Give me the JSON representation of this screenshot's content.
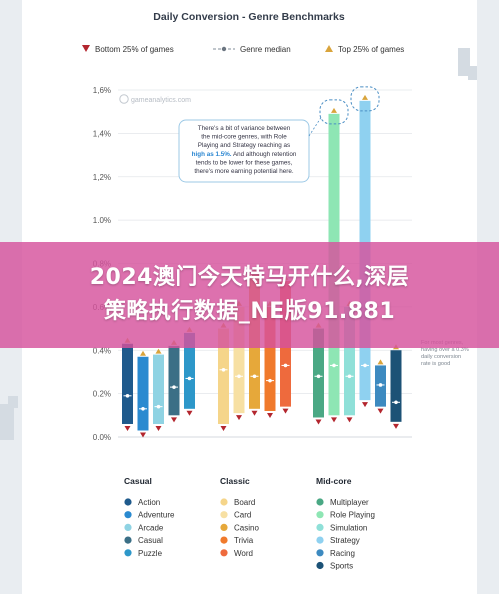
{
  "chart_data": {
    "type": "bar",
    "title": "Daily Conversion - Genre Benchmarks",
    "watermark": "gameanalytics.com",
    "ylim": [
      0,
      1.6
    ],
    "yticks": [
      "0.0%",
      "0.2%",
      "0.4%",
      "0.6%",
      "0.8%",
      "1.0%",
      "1,2%",
      "1,4%",
      "1,6%"
    ],
    "ytick_values": [
      0,
      0.2,
      0.4,
      0.6,
      0.8,
      1.0,
      1.2,
      1.4,
      1.6
    ],
    "legend": {
      "bottom": "Bottom 25% of games",
      "median": "Genre median",
      "top": "Top 25% of games"
    },
    "groups": [
      {
        "name": "Casual",
        "genres": [
          {
            "name": "Action",
            "color": "#1f5a8c",
            "bottom": 0.06,
            "median": 0.19,
            "top": 0.43
          },
          {
            "name": "Adventure",
            "color": "#2a8ad0",
            "bottom": 0.03,
            "median": 0.13,
            "top": 0.37
          },
          {
            "name": "Arcade",
            "color": "#8fd3e3",
            "bottom": 0.06,
            "median": 0.14,
            "top": 0.38
          },
          {
            "name": "Casual",
            "color": "#3b6f86",
            "bottom": 0.1,
            "median": 0.23,
            "top": 0.42
          },
          {
            "name": "Puzzle",
            "color": "#2d97c9",
            "bottom": 0.13,
            "median": 0.27,
            "top": 0.48
          }
        ]
      },
      {
        "name": "Classic",
        "genres": [
          {
            "name": "Board",
            "color": "#f5d58a",
            "bottom": 0.06,
            "median": 0.31,
            "top": 0.5
          },
          {
            "name": "Card",
            "color": "#f7e0a3",
            "bottom": 0.11,
            "median": 0.28,
            "top": 0.6
          },
          {
            "name": "Casino",
            "color": "#e6a83a",
            "bottom": 0.13,
            "median": 0.28,
            "top": 0.75
          },
          {
            "name": "Trivia",
            "color": "#f07a2c",
            "bottom": 0.12,
            "median": 0.26,
            "top": 0.6
          },
          {
            "name": "Word",
            "color": "#ee6a3d",
            "bottom": 0.14,
            "median": 0.33,
            "top": 0.72
          }
        ]
      },
      {
        "name": "Mid-core",
        "genres": [
          {
            "name": "Multiplayer",
            "color": "#4aa884",
            "bottom": 0.09,
            "median": 0.28,
            "top": 0.5
          },
          {
            "name": "Role Playing",
            "color": "#8ee6b4",
            "bottom": 0.1,
            "median": 0.33,
            "top": 1.49
          },
          {
            "name": "Simulation",
            "color": "#8fe0d8",
            "bottom": 0.1,
            "median": 0.28,
            "top": 0.6
          },
          {
            "name": "Strategy",
            "color": "#8fd1f0",
            "bottom": 0.17,
            "median": 0.33,
            "top": 1.55
          },
          {
            "name": "Racing",
            "color": "#3d8ac0",
            "bottom": 0.14,
            "median": 0.24,
            "top": 0.33
          },
          {
            "name": "Sports",
            "color": "#1c5276",
            "bottom": 0.07,
            "median": 0.16,
            "top": 0.4
          }
        ]
      }
    ],
    "callout": {
      "lines": [
        "There's a bit of variance between",
        "the mid-core genres, with Role",
        "Playing and Strategy reaching as",
        "high as 1.5%. And although retention",
        "tends to be lower for these games,",
        "there's more earning potential here."
      ],
      "highlight": "high as 1.5%."
    },
    "side_note": [
      "For most genres,",
      "having over a 0.3%",
      "daily conversion",
      "rate is good"
    ]
  },
  "banner": {
    "line1": "2024澳门今天特马开什么,深层",
    "line2": "策略执行数据_NE版91.881"
  }
}
